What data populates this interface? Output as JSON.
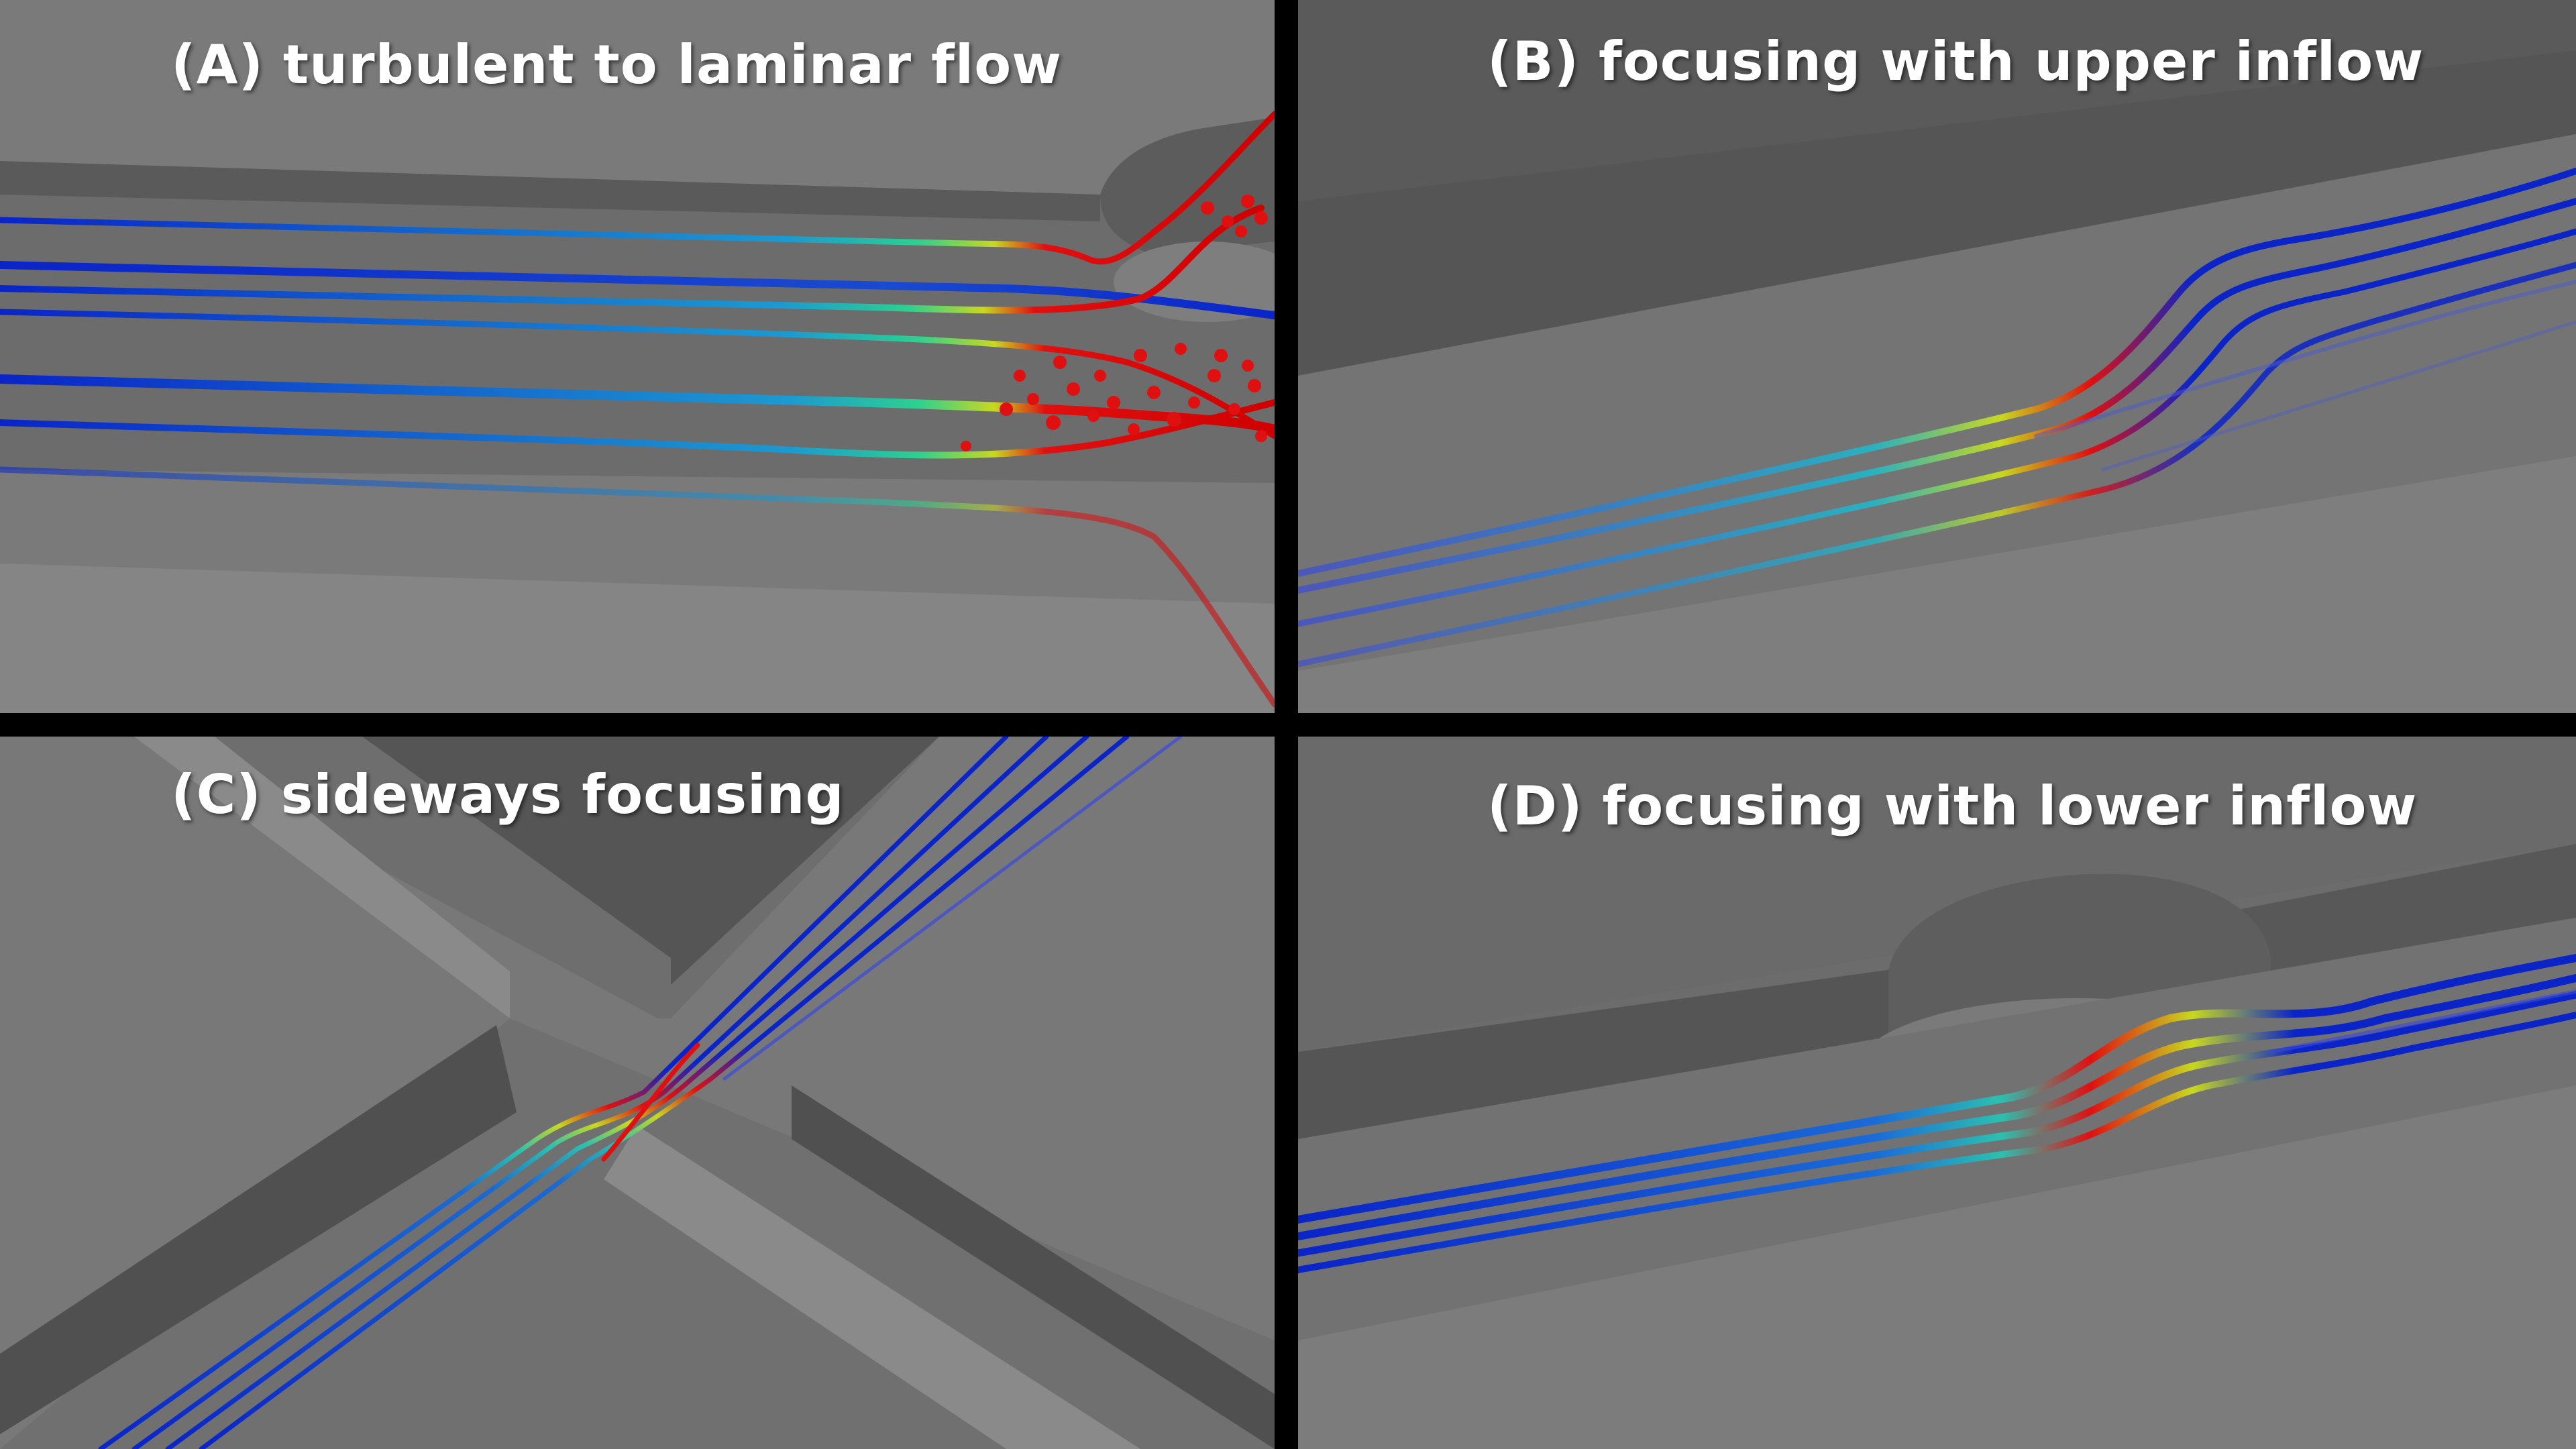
{
  "panels": [
    {
      "id": "A",
      "title": "(A) turbulent to laminar flow"
    },
    {
      "id": "B",
      "title": "(B) focusing with upper inflow"
    },
    {
      "id": "C",
      "title": "(C) sideways focusing"
    },
    {
      "id": "D",
      "title": "(D) focusing with lower inflow"
    }
  ],
  "colors": {
    "frame": "#000000",
    "surface": "#707070",
    "wall_dark": "#4e4e4e",
    "stream_slow": "#0a24c8",
    "stream_mid": "#1cc4c8",
    "stream_yellow": "#c8d820",
    "stream_fast": "#e01010",
    "title_text": "#ffffff"
  }
}
